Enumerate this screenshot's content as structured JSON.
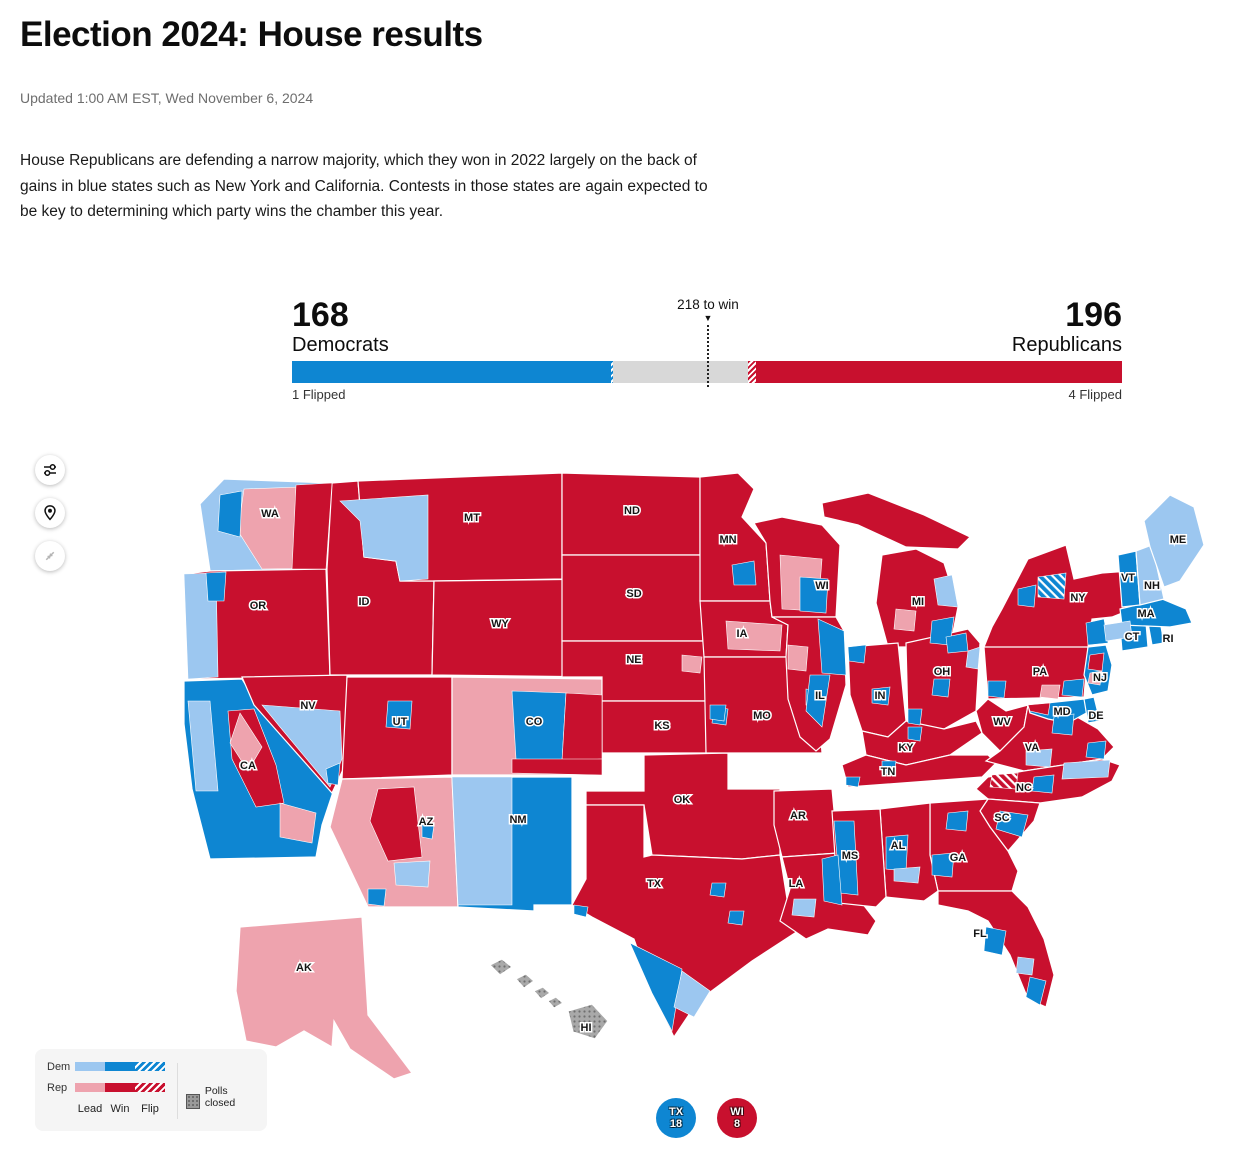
{
  "page": {
    "title": "Election 2024: House results",
    "updated": "Updated 1:00 AM EST, Wed November 6, 2024",
    "description": "House Republicans are defending a narrow majority, which they won in 2022 largely on the back of gains in blue states such as New York and California. Contests in those states are again expected to be key to determining which party wins the chamber this year."
  },
  "colors": {
    "dem_win": "#0E86D2",
    "dem_lead": "#9CC7F0",
    "rep_win": "#C8102E",
    "rep_lead": "#EEA3AE",
    "undecided": "#D8D8D8",
    "polls_closed": "#A9A9A9"
  },
  "balance_of_power": {
    "dem_seats": 168,
    "rep_seats": 196,
    "total_seats": 435,
    "to_win": 218,
    "to_win_label": "218 to win",
    "dem_label": "Democrats",
    "rep_label": "Republicans",
    "dem_flipped": 1,
    "rep_flipped": 4,
    "dem_flipped_label": "1 Flipped",
    "rep_flipped_label": "4 Flipped"
  },
  "legend": {
    "dem_label": "Dem",
    "rep_label": "Rep",
    "lead_label": "Lead",
    "win_label": "Win",
    "flip_label": "Flip",
    "polls_closed_label": "Polls closed"
  },
  "map": {
    "controls": [
      {
        "icon": "sliders-icon"
      },
      {
        "icon": "location-pin-icon"
      },
      {
        "icon": "collapse-arrows-icon"
      }
    ],
    "states": [
      {
        "id": "WA",
        "label": "WA",
        "fill": "dem_lead"
      },
      {
        "id": "OR",
        "label": "OR",
        "fill": "rep_win"
      },
      {
        "id": "CA",
        "label": "CA",
        "fill": "dem_win"
      },
      {
        "id": "NV",
        "label": "NV",
        "fill": "rep_win"
      },
      {
        "id": "ID",
        "label": "ID",
        "fill": "rep_win"
      },
      {
        "id": "MT",
        "label": "MT",
        "fill": "rep_win"
      },
      {
        "id": "WY",
        "label": "WY",
        "fill": "rep_win"
      },
      {
        "id": "UT",
        "label": "UT",
        "fill": "rep_win"
      },
      {
        "id": "CO",
        "label": "CO",
        "fill": "rep_lead"
      },
      {
        "id": "AZ",
        "label": "AZ",
        "fill": "rep_lead"
      },
      {
        "id": "NM",
        "label": "NM",
        "fill": "dem_win"
      },
      {
        "id": "ND",
        "label": "ND",
        "fill": "rep_win"
      },
      {
        "id": "SD",
        "label": "SD",
        "fill": "rep_win"
      },
      {
        "id": "NE",
        "label": "NE",
        "fill": "rep_win"
      },
      {
        "id": "KS",
        "label": "KS",
        "fill": "rep_win"
      },
      {
        "id": "OK",
        "label": "OK",
        "fill": "rep_win"
      },
      {
        "id": "TX",
        "label": "TX",
        "fill": "rep_win"
      },
      {
        "id": "MN",
        "label": "MN",
        "fill": "rep_win"
      },
      {
        "id": "IA",
        "label": "IA",
        "fill": "rep_win"
      },
      {
        "id": "MO",
        "label": "MO",
        "fill": "rep_win"
      },
      {
        "id": "AR",
        "label": "AR",
        "fill": "rep_win"
      },
      {
        "id": "LA",
        "label": "LA",
        "fill": "rep_win"
      },
      {
        "id": "WI",
        "label": "WI",
        "fill": "rep_win"
      },
      {
        "id": "IL",
        "label": "IL",
        "fill": "rep_win"
      },
      {
        "id": "MI",
        "label": "MI",
        "fill": "rep_win"
      },
      {
        "id": "IN",
        "label": "IN",
        "fill": "rep_win"
      },
      {
        "id": "OH",
        "label": "OH",
        "fill": "rep_win"
      },
      {
        "id": "KY",
        "label": "KY",
        "fill": "rep_win"
      },
      {
        "id": "TN",
        "label": "TN",
        "fill": "rep_win"
      },
      {
        "id": "MS",
        "label": "MS",
        "fill": "rep_win"
      },
      {
        "id": "AL",
        "label": "AL",
        "fill": "rep_win"
      },
      {
        "id": "GA",
        "label": "GA",
        "fill": "rep_win"
      },
      {
        "id": "FL",
        "label": "FL",
        "fill": "rep_win"
      },
      {
        "id": "SC",
        "label": "SC",
        "fill": "rep_win"
      },
      {
        "id": "NC",
        "label": "NC",
        "fill": "rep_win"
      },
      {
        "id": "VA",
        "label": "VA",
        "fill": "rep_win"
      },
      {
        "id": "WV",
        "label": "WV",
        "fill": "rep_win"
      },
      {
        "id": "PA",
        "label": "PA",
        "fill": "rep_win"
      },
      {
        "id": "NY",
        "label": "NY",
        "fill": "rep_win"
      },
      {
        "id": "NJ",
        "label": "NJ",
        "fill": "dem_win"
      },
      {
        "id": "MD",
        "label": "MD",
        "fill": "dem_win"
      },
      {
        "id": "DE",
        "label": "DE",
        "fill": "dem_win"
      },
      {
        "id": "CT",
        "label": "CT",
        "fill": "dem_win"
      },
      {
        "id": "RI",
        "label": "RI",
        "fill": "dem_win"
      },
      {
        "id": "MA",
        "label": "MA",
        "fill": "dem_win"
      },
      {
        "id": "VT",
        "label": "VT",
        "fill": "dem_win"
      },
      {
        "id": "NH",
        "label": "NH",
        "fill": "dem_lead"
      },
      {
        "id": "ME",
        "label": "ME",
        "fill": "dem_lead"
      },
      {
        "id": "AK",
        "label": "AK",
        "fill": "rep_lead"
      },
      {
        "id": "HI",
        "label": "HI",
        "fill": "polls_closed"
      }
    ]
  },
  "badges": [
    {
      "state": "TX",
      "district": "18",
      "party": "dem"
    },
    {
      "state": "WI",
      "district": "8",
      "party": "rep"
    }
  ]
}
